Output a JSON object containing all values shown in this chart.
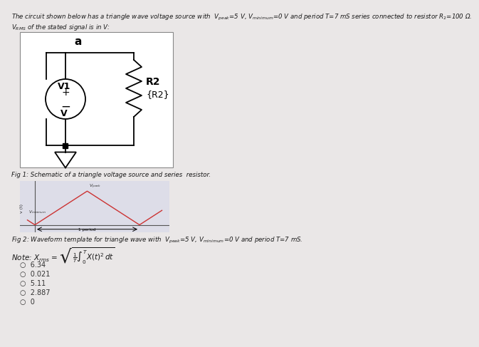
{
  "bg_color": "#eae7e7",
  "title_line1": "The circuit shown below has a triangle wave voltage source with  $V_{peak}$=5 V, $V_{minimum}$=0 V and period T=7 mS series connected to resistor $R_2$=100 Ω.",
  "subtitle": "$V_{RMS}$ of the stated signal is in V:",
  "fig1_caption": "Fig 1: Schematic of a triangle voltage source and series  resistor.",
  "fig2_caption": "Fig 2: Waveform template for triangle wave with  $V_{peak}$=5 V, $V_{minimum}$=0 V and period T=7 mS.",
  "note_formula": "Note: $X_{rms}$ = $\\sqrt{\\frac{1}{T}\\int_{0}^{T} X(t)^2\\, dt}$",
  "answers": [
    "6.34",
    "0.021",
    "5.11",
    "2.887",
    "0"
  ],
  "circuit_label_a": "a",
  "v1_label": "V1",
  "v_label": "V",
  "r2_label": "R2",
  "r2_brace": "{R2}",
  "plus": "+",
  "minus": "−",
  "text_color": "#1a1a1a",
  "wire_color": "#000000",
  "circuit_bg": "#ffffff",
  "circuit_border": "#888888",
  "waveform_bg": "#dddde8",
  "wave_color": "#cc3333",
  "axis_color": "#555555"
}
